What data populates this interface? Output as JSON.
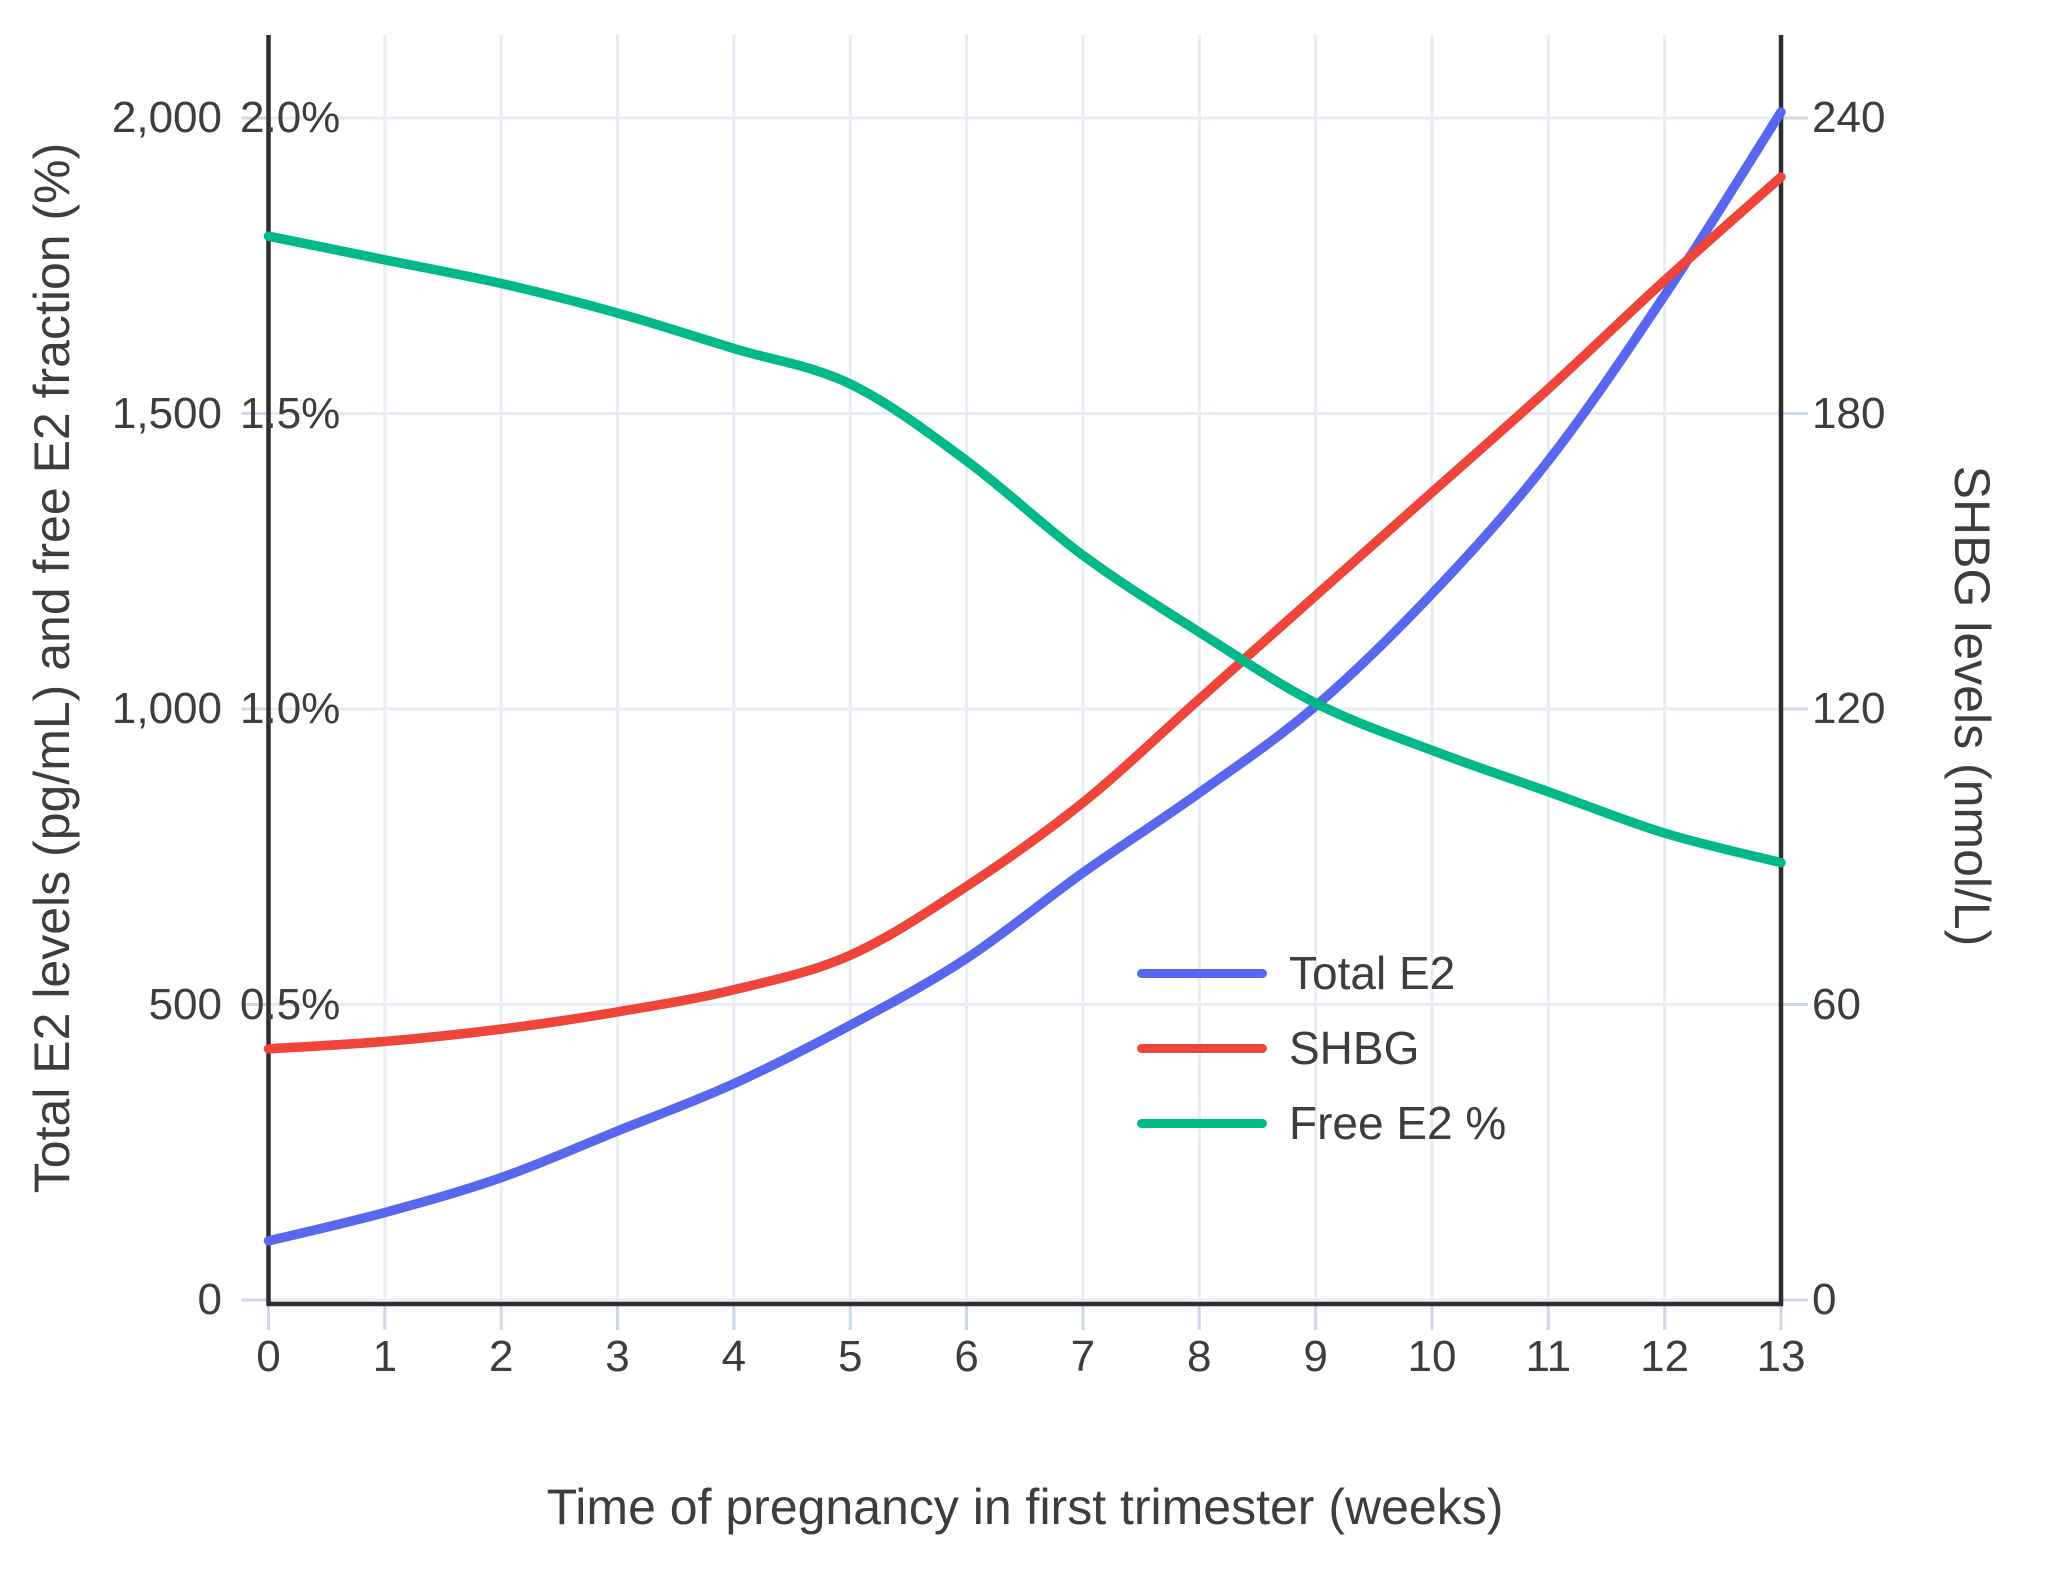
{
  "chart_data": {
    "type": "line",
    "title": "",
    "xlabel": "Time of pregnancy in first trimester (weeks)",
    "ylabel_left": "Total E2 levels (pg/mL) and free E2 fraction (%)",
    "ylabel_right": "SHBG levels (nmol/L)",
    "grid": true,
    "legend_position": "inside-right",
    "x": [
      0,
      1,
      2,
      3,
      4,
      5,
      6,
      7,
      8,
      9,
      10,
      11,
      12,
      13
    ],
    "x_tick_labels": [
      "0",
      "1",
      "2",
      "3",
      "4",
      "5",
      "6",
      "7",
      "8",
      "9",
      "10",
      "11",
      "12",
      "13"
    ],
    "left_axis": {
      "range": [
        0,
        2000
      ],
      "ticks": [
        {
          "value": 0,
          "label": "0"
        },
        {
          "value": 500,
          "label": "500"
        },
        {
          "value": 1000,
          "label": "1,000"
        },
        {
          "value": 1500,
          "label": "1,500"
        },
        {
          "value": 2000,
          "label": "2,000"
        }
      ],
      "percent_labels": [
        {
          "value": 500,
          "label": "0.5%"
        },
        {
          "value": 1000,
          "label": "1.0%"
        },
        {
          "value": 1500,
          "label": "1.5%"
        },
        {
          "value": 2000,
          "label": "2.0%"
        }
      ]
    },
    "right_axis": {
      "range": [
        0,
        240
      ],
      "ticks": [
        {
          "value": 0,
          "label": "0"
        },
        {
          "value": 60,
          "label": "60"
        },
        {
          "value": 120,
          "label": "120"
        },
        {
          "value": 180,
          "label": "180"
        },
        {
          "value": 240,
          "label": "240"
        }
      ]
    },
    "series": [
      {
        "name": "Total E2",
        "axis": "left",
        "unit": "pg/mL",
        "color": "#5767ee",
        "values": [
          100,
          148,
          207,
          286,
          366,
          465,
          578,
          723,
          858,
          1005,
          1195,
          1420,
          1700,
          2010
        ]
      },
      {
        "name": "SHBG",
        "axis": "right",
        "unit": "nmol/L",
        "color": "#ee443a",
        "values": [
          51,
          52.5,
          55,
          58.5,
          63,
          70,
          84,
          101,
          122,
          143,
          164,
          185,
          207,
          228
        ]
      },
      {
        "name": "Free E2 %",
        "axis": "left_percent",
        "unit": "%",
        "color": "#00b888",
        "values": [
          1.8,
          1.76,
          1.72,
          1.67,
          1.61,
          1.55,
          1.42,
          1.26,
          1.13,
          1.01,
          0.93,
          0.86,
          0.79,
          0.74
        ]
      }
    ]
  },
  "colors": {
    "background": "#ffffff",
    "grid": "#e7ecf6",
    "axis": "#2e2e2e",
    "tick_mark": "#ccd7e8",
    "text": "#3d3d3d"
  }
}
